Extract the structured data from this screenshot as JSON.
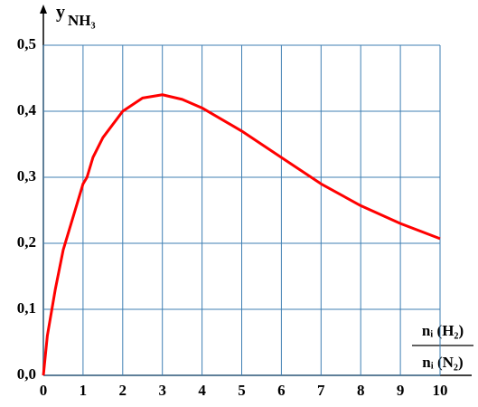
{
  "chart_data": {
    "type": "line",
    "ylabel": "y",
    "ylabel_sub": "NH₃",
    "xlabel_top": "nᵢ (H₂)",
    "xlabel_bottom": "nᵢ (N₂)",
    "x": [
      0,
      0.1,
      0.3,
      0.5,
      0.75,
      1,
      1.1,
      1.25,
      1.5,
      2,
      2.5,
      3,
      3.5,
      4,
      5,
      6,
      7,
      8,
      9,
      10
    ],
    "series": [
      {
        "color": "#ff0000",
        "values": [
          0,
          0.06,
          0.13,
          0.19,
          0.24,
          0.29,
          0.3,
          0.33,
          0.36,
          0.4,
          0.42,
          0.425,
          0.418,
          0.405,
          0.37,
          0.33,
          0.29,
          0.257,
          0.23,
          0.207
        ]
      }
    ],
    "xlim": [
      0,
      10
    ],
    "xticks": [
      0,
      1,
      2,
      3,
      4,
      5,
      6,
      7,
      8,
      9,
      10
    ],
    "ylim": [
      0,
      0.5
    ],
    "yticks": [
      {
        "value": 0,
        "label": "0,0"
      },
      {
        "value": 0.1,
        "label": "0,1"
      },
      {
        "value": 0.2,
        "label": "0,2"
      },
      {
        "value": 0.3,
        "label": "0,3"
      },
      {
        "value": 0.4,
        "label": "0,4"
      },
      {
        "value": 0.5,
        "label": "0,5"
      }
    ],
    "grid": true,
    "grid_color": "#3f7fb3"
  }
}
